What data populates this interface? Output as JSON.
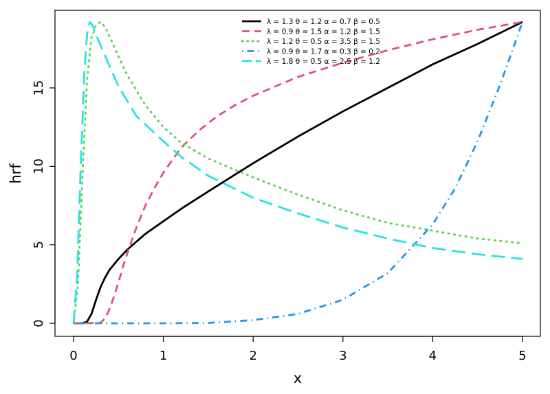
{
  "chart_data": {
    "type": "line",
    "xlabel": "x",
    "ylabel": "hrf",
    "xlim": [
      0,
      5
    ],
    "ylim": [
      0,
      19.2
    ],
    "x_ticks": [
      0,
      1,
      2,
      3,
      4,
      5
    ],
    "y_ticks": [
      0,
      5,
      10,
      15
    ],
    "legend_position": "top-right",
    "series": [
      {
        "name": "λ = 1.3  θ = 1.2  α = 0.7  β = 0.5",
        "color": "#000000",
        "style": "solid",
        "points": [
          [
            0,
            0
          ],
          [
            0.1,
            0.01
          ],
          [
            0.15,
            0.1
          ],
          [
            0.2,
            0.6
          ],
          [
            0.25,
            1.5
          ],
          [
            0.3,
            2.3
          ],
          [
            0.35,
            2.9
          ],
          [
            0.4,
            3.4
          ],
          [
            0.5,
            4.1
          ],
          [
            0.6,
            4.7
          ],
          [
            0.7,
            5.2
          ],
          [
            0.8,
            5.7
          ],
          [
            1.0,
            6.5
          ],
          [
            1.2,
            7.3
          ],
          [
            1.5,
            8.4
          ],
          [
            2.0,
            10.2
          ],
          [
            2.5,
            11.9
          ],
          [
            3.0,
            13.5
          ],
          [
            3.5,
            15.0
          ],
          [
            4.0,
            16.5
          ],
          [
            4.5,
            17.8
          ],
          [
            5.0,
            19.2
          ]
        ]
      },
      {
        "name": "λ = 0.9  θ = 1.5  α = 1.2  β = 1.5",
        "color": "#DF536B",
        "style": "dashed",
        "points": [
          [
            0,
            0
          ],
          [
            0.3,
            0.02
          ],
          [
            0.35,
            0.3
          ],
          [
            0.4,
            0.9
          ],
          [
            0.45,
            1.7
          ],
          [
            0.5,
            2.6
          ],
          [
            0.55,
            3.6
          ],
          [
            0.6,
            4.5
          ],
          [
            0.7,
            6.1
          ],
          [
            0.8,
            7.5
          ],
          [
            0.9,
            8.6
          ],
          [
            1.0,
            9.6
          ],
          [
            1.2,
            11.2
          ],
          [
            1.4,
            12.3
          ],
          [
            1.6,
            13.2
          ],
          [
            1.8,
            13.9
          ],
          [
            2.0,
            14.5
          ],
          [
            2.5,
            15.7
          ],
          [
            3.0,
            16.6
          ],
          [
            3.5,
            17.4
          ],
          [
            4.0,
            18.1
          ],
          [
            4.5,
            18.7
          ],
          [
            5.0,
            19.2
          ]
        ]
      },
      {
        "name": "λ = 1.2  θ = 0.5  α = 3.5  β = 1.5",
        "color": "#61D04F",
        "style": "dotted",
        "points": [
          [
            0,
            0
          ],
          [
            0.05,
            2.5
          ],
          [
            0.1,
            9.5
          ],
          [
            0.15,
            15.5
          ],
          [
            0.2,
            18.2
          ],
          [
            0.25,
            19.0
          ],
          [
            0.3,
            19.2
          ],
          [
            0.35,
            18.9
          ],
          [
            0.4,
            18.3
          ],
          [
            0.5,
            17.0
          ],
          [
            0.6,
            15.8
          ],
          [
            0.8,
            13.9
          ],
          [
            1.0,
            12.5
          ],
          [
            1.2,
            11.5
          ],
          [
            1.5,
            10.5
          ],
          [
            2.0,
            9.3
          ],
          [
            2.5,
            8.2
          ],
          [
            3.0,
            7.2
          ],
          [
            3.5,
            6.4
          ],
          [
            4.0,
            5.9
          ],
          [
            4.5,
            5.4
          ],
          [
            5.0,
            5.1
          ]
        ]
      },
      {
        "name": "λ = 0.9  θ = 1.7  α = 0.3  β = 0.2",
        "color": "#2297E6",
        "style": "dotdash",
        "points": [
          [
            0,
            0
          ],
          [
            0.5,
            0
          ],
          [
            1.0,
            0
          ],
          [
            1.5,
            0.02
          ],
          [
            2.0,
            0.2
          ],
          [
            2.5,
            0.6
          ],
          [
            3.0,
            1.5
          ],
          [
            3.5,
            3.2
          ],
          [
            4.0,
            6.3
          ],
          [
            4.25,
            8.6
          ],
          [
            4.5,
            11.6
          ],
          [
            4.75,
            15.2
          ],
          [
            5.0,
            19.2
          ]
        ]
      },
      {
        "name": "λ = 1.8  θ = 0.5  α = 2.5  β = 1.2",
        "color": "#28E2E5",
        "style": "longdash",
        "points": [
          [
            0,
            0
          ],
          [
            0.04,
            3.0
          ],
          [
            0.08,
            10.0
          ],
          [
            0.12,
            16.0
          ],
          [
            0.15,
            18.4
          ],
          [
            0.18,
            19.2
          ],
          [
            0.21,
            19.0
          ],
          [
            0.25,
            18.4
          ],
          [
            0.3,
            17.7
          ],
          [
            0.4,
            16.4
          ],
          [
            0.5,
            15.1
          ],
          [
            0.7,
            13.2
          ],
          [
            1.0,
            11.6
          ],
          [
            1.2,
            10.6
          ],
          [
            1.5,
            9.4
          ],
          [
            2.0,
            8.0
          ],
          [
            2.5,
            7.0
          ],
          [
            3.0,
            6.1
          ],
          [
            3.5,
            5.4
          ],
          [
            4.0,
            4.8
          ],
          [
            4.5,
            4.4
          ],
          [
            5.0,
            4.1
          ]
        ]
      }
    ]
  }
}
